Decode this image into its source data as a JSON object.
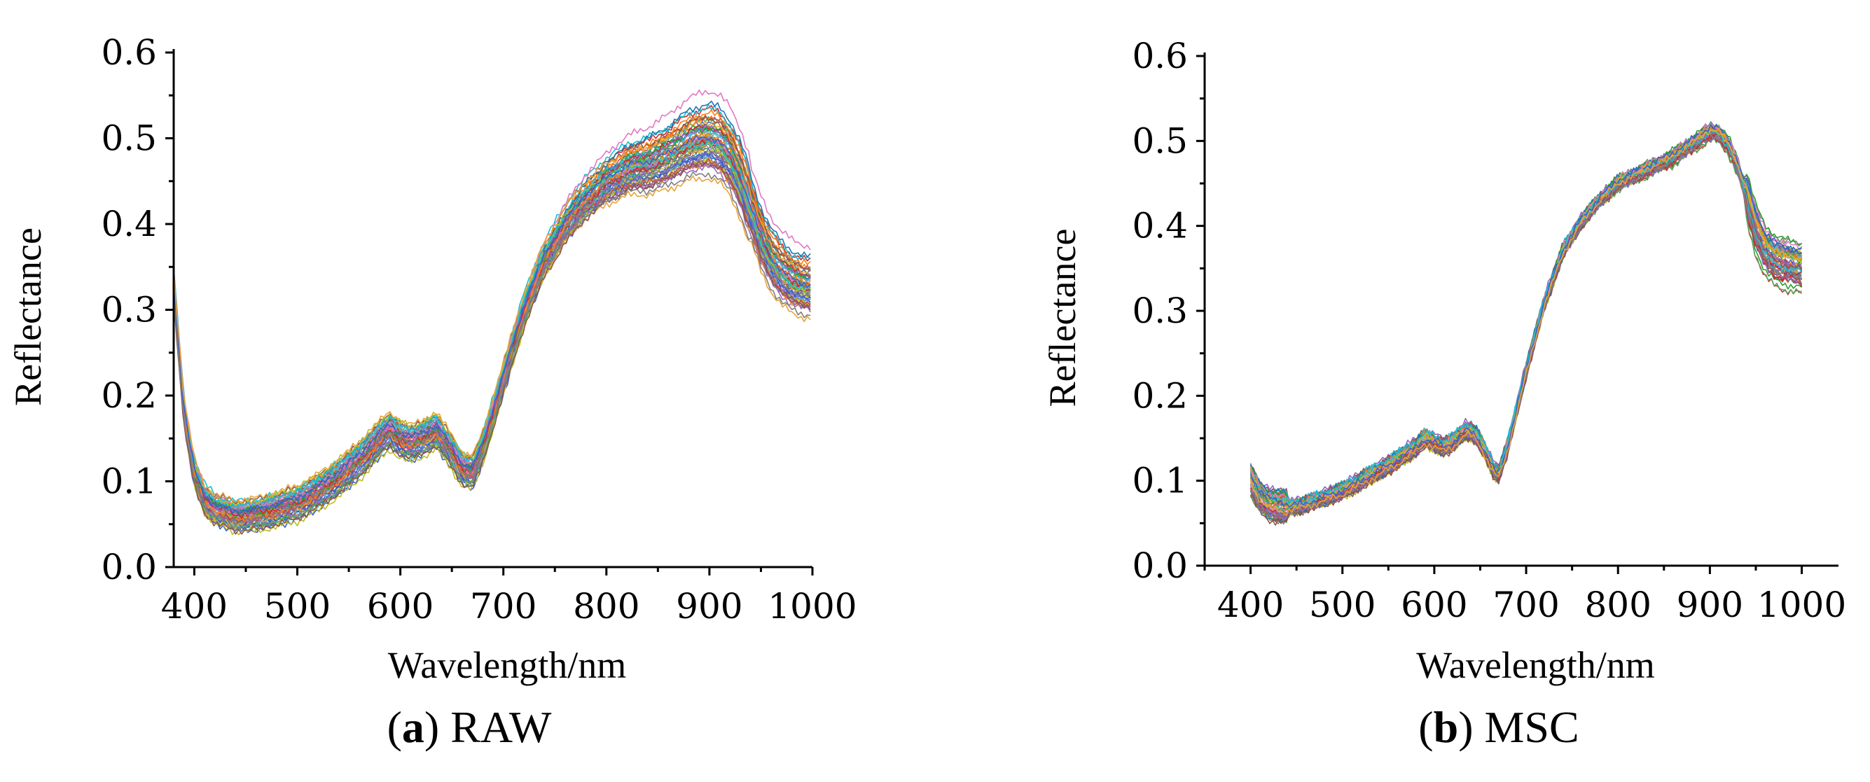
{
  "figure": {
    "palette": [
      "#1f77b4",
      "#ff7f0e",
      "#2ca02c",
      "#d62728",
      "#9467bd",
      "#8c564b",
      "#e377c2",
      "#7f7f7f",
      "#bcbd22",
      "#17becf",
      "#3a5fcd",
      "#e8a33b",
      "#55a868",
      "#c44e52",
      "#8172b2",
      "#64b5cd"
    ]
  },
  "chart_data": [
    {
      "type": "line",
      "panel_id": "a",
      "caption_letter": "a",
      "caption_text": "RAW",
      "xlabel": "Wavelength/nm",
      "ylabel": "Reflectance",
      "xlim": [
        380,
        1000
      ],
      "ylim": [
        0.0,
        0.6
      ],
      "xticks": [
        400,
        500,
        600,
        700,
        800,
        900,
        1000
      ],
      "yticks": [
        0.0,
        0.1,
        0.2,
        0.3,
        0.4,
        0.5,
        0.6
      ],
      "ytick_labels": [
        "0.0",
        "0.1",
        "0.2",
        "0.3",
        "0.4",
        "0.5",
        "0.6"
      ],
      "n_series": 60,
      "mean_spectrum": {
        "x": [
          380,
          390,
          400,
          410,
          420,
          440,
          460,
          480,
          500,
          520,
          540,
          560,
          580,
          590,
          600,
          610,
          620,
          635,
          650,
          660,
          670,
          680,
          700,
          720,
          740,
          760,
          780,
          800,
          820,
          840,
          860,
          880,
          900,
          910,
          920,
          930,
          940,
          950,
          960,
          970,
          980,
          990,
          1000
        ],
        "y": [
          0.33,
          0.18,
          0.11,
          0.08,
          0.068,
          0.06,
          0.062,
          0.068,
          0.075,
          0.088,
          0.105,
          0.125,
          0.15,
          0.16,
          0.15,
          0.145,
          0.15,
          0.16,
          0.135,
          0.115,
          0.11,
          0.14,
          0.22,
          0.3,
          0.36,
          0.4,
          0.43,
          0.45,
          0.465,
          0.47,
          0.48,
          0.495,
          0.5,
          0.495,
          0.48,
          0.455,
          0.42,
          0.385,
          0.36,
          0.345,
          0.335,
          0.33,
          0.328
        ]
      },
      "series_spread": {
        "near_400nm": 0.03,
        "visible": 0.03,
        "near_900nm": 0.06,
        "near_1000nm": 0.05
      }
    },
    {
      "type": "line",
      "panel_id": "b",
      "caption_letter": "b",
      "caption_text": "MSC",
      "xlabel": "Wavelength/nm",
      "ylabel": "Reflectance",
      "xlim": [
        350,
        1040
      ],
      "ylim": [
        0.0,
        0.6
      ],
      "xticks": [
        400,
        500,
        600,
        700,
        800,
        900,
        1000
      ],
      "yticks": [
        0.0,
        0.1,
        0.2,
        0.3,
        0.4,
        0.5,
        0.6
      ],
      "ytick_labels": [
        "0.0",
        "0.1",
        "0.2",
        "0.3",
        "0.4",
        "0.5",
        "0.6"
      ],
      "n_series": 60,
      "mean_spectrum": {
        "x": [
          400,
          410,
          420,
          440,
          460,
          480,
          500,
          520,
          540,
          560,
          580,
          590,
          600,
          610,
          620,
          635,
          645,
          655,
          665,
          670,
          680,
          700,
          720,
          740,
          760,
          780,
          800,
          820,
          840,
          860,
          880,
          900,
          910,
          920,
          930,
          940,
          950,
          960,
          970,
          980,
          990,
          1000
        ],
        "y": [
          0.1,
          0.08,
          0.072,
          0.068,
          0.072,
          0.08,
          0.088,
          0.1,
          0.112,
          0.125,
          0.14,
          0.15,
          0.145,
          0.14,
          0.145,
          0.16,
          0.155,
          0.135,
          0.112,
          0.108,
          0.14,
          0.23,
          0.31,
          0.37,
          0.405,
          0.43,
          0.45,
          0.46,
          0.47,
          0.48,
          0.495,
          0.51,
          0.508,
          0.495,
          0.47,
          0.435,
          0.395,
          0.37,
          0.36,
          0.355,
          0.352,
          0.35
        ]
      },
      "series_spread": {
        "near_400nm": 0.03,
        "visible": 0.012,
        "near_900nm": 0.012,
        "near_1000nm": 0.035
      }
    }
  ]
}
